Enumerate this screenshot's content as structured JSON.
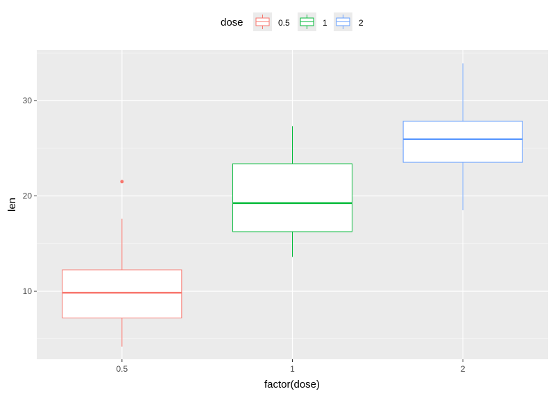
{
  "chart_data": {
    "type": "boxplot",
    "title": "",
    "xlabel": "factor(dose)",
    "ylabel": "len",
    "categories": [
      "0.5",
      "1",
      "2"
    ],
    "ylim": [
      2.6,
      35.1
    ],
    "yticks": [
      10,
      20,
      30
    ],
    "grid": true,
    "legend": {
      "title": "dose",
      "position": "top",
      "entries": [
        "0.5",
        "1",
        "2"
      ]
    },
    "series": [
      {
        "name": "0.5",
        "color": "#F8766D",
        "whisker_low": 4.2,
        "q1": 7.2,
        "median": 9.85,
        "q3": 12.25,
        "whisker_high": 17.6,
        "outliers": [
          21.5
        ]
      },
      {
        "name": "1",
        "color": "#00BA38",
        "whisker_low": 13.6,
        "q1": 16.25,
        "median": 19.25,
        "q3": 23.375,
        "whisker_high": 27.3,
        "outliers": []
      },
      {
        "name": "2",
        "color": "#619CFF",
        "whisker_low": 18.5,
        "q1": 23.525,
        "median": 25.95,
        "q3": 27.825,
        "whisker_high": 33.9,
        "outliers": []
      }
    ]
  },
  "colors": {
    "panel_bg": "#EBEBEB",
    "grid_major": "#FFFFFF",
    "box_fill": "#FFFFFF"
  }
}
